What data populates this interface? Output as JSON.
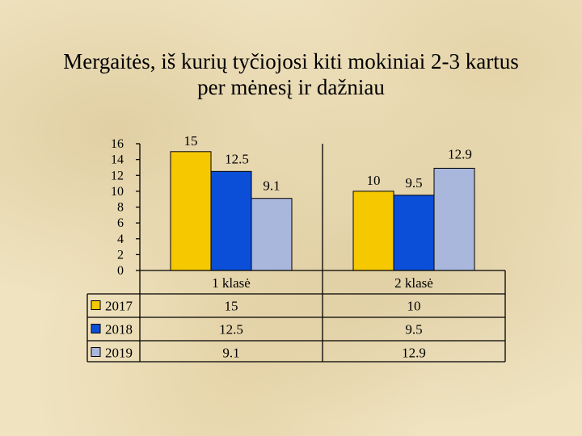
{
  "title": "Mergaitės, iš kurių tyčiojosi kiti mokiniai 2-3 kartus per mėnesį ir dažniau",
  "colors": {
    "series_2017": "#f6c800",
    "series_2018": "#0b4fd9",
    "series_2019": "#a9b7dc",
    "background": "#efe3c0"
  },
  "chart_data": {
    "type": "bar",
    "title": "Mergaitės, iš kurių tyčiojosi kiti mokiniai 2-3 kartus per mėnesį ir dažniau",
    "categories": [
      "1 klasė",
      "2 klasė"
    ],
    "series": [
      {
        "name": "2017",
        "values": [
          15,
          10
        ],
        "value_labels": [
          "15",
          "10"
        ],
        "color": "#f6c800"
      },
      {
        "name": "2018",
        "values": [
          12.5,
          9.5
        ],
        "value_labels": [
          "12.5",
          "9.5"
        ],
        "color": "#0b4fd9"
      },
      {
        "name": "2019",
        "values": [
          9.1,
          12.9
        ],
        "value_labels": [
          "9.1",
          "12.9"
        ],
        "color": "#a9b7dc"
      }
    ],
    "ylim": [
      0,
      16
    ],
    "yticks": [
      0,
      2,
      4,
      6,
      8,
      10,
      12,
      14,
      16
    ],
    "xlabel": "",
    "ylabel": "",
    "grid": false,
    "legend": "data-table-below",
    "data_table": true
  }
}
